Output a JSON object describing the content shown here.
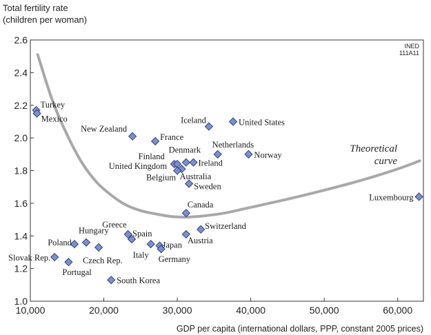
{
  "chart_data": {
    "type": "scatter",
    "ylabel_lines": [
      "Total fertility rate",
      "(children per woman)"
    ],
    "xlabel": "GDP per capita (international dollars, PPP, constant 2005 prices)",
    "source_code_lines": [
      "INED",
      "111A11"
    ],
    "xlim": [
      10000,
      63500
    ],
    "ylim": [
      1.0,
      2.6
    ],
    "x_ticks": [
      10000,
      20000,
      30000,
      40000,
      50000,
      60000
    ],
    "x_tick_labels": [
      "10,000",
      "20,000",
      "30,000",
      "40,000",
      "50,000",
      "60,000"
    ],
    "y_ticks": [
      1.0,
      1.2,
      1.4,
      1.6,
      1.8,
      2.0,
      2.2,
      2.4,
      2.6
    ],
    "y_tick_labels": [
      "1.0",
      "1.2",
      "1.4",
      "1.6",
      "1.8",
      "2.0",
      "2.2",
      "2.4",
      "2.6"
    ],
    "marker_color": "#7b8fd0",
    "curve_color": "#a8a8a8",
    "points": [
      {
        "name": "Turkey",
        "x": 10800,
        "y": 2.17
      },
      {
        "name": "Mexico",
        "x": 10900,
        "y": 2.15
      },
      {
        "name": "New Zealand",
        "x": 23900,
        "y": 2.01
      },
      {
        "name": "France",
        "x": 27000,
        "y": 1.98
      },
      {
        "name": "Iceland",
        "x": 34300,
        "y": 2.07
      },
      {
        "name": "United States",
        "x": 37600,
        "y": 2.1
      },
      {
        "name": "Netherlands",
        "x": 35500,
        "y": 1.9
      },
      {
        "name": "Norway",
        "x": 39700,
        "y": 1.9
      },
      {
        "name": "Denmark",
        "x": 31200,
        "y": 1.85
      },
      {
        "name": "Finland",
        "x": 29600,
        "y": 1.84
      },
      {
        "name": "United Kingdom",
        "x": 30000,
        "y": 1.84
      },
      {
        "name": "Australia",
        "x": 30600,
        "y": 1.81
      },
      {
        "name": "Belgium",
        "x": 30000,
        "y": 1.8
      },
      {
        "name": "Ireland",
        "x": 32200,
        "y": 1.85
      },
      {
        "name": "Sweden",
        "x": 31600,
        "y": 1.72
      },
      {
        "name": "Luxembourg",
        "x": 62900,
        "y": 1.64
      },
      {
        "name": "Canada",
        "x": 31200,
        "y": 1.54
      },
      {
        "name": "Switzerland",
        "x": 33200,
        "y": 1.44
      },
      {
        "name": "Austria",
        "x": 31200,
        "y": 1.41
      },
      {
        "name": "Greece",
        "x": 23300,
        "y": 1.41
      },
      {
        "name": "Spain",
        "x": 23800,
        "y": 1.38
      },
      {
        "name": "Italy",
        "x": 26400,
        "y": 1.35
      },
      {
        "name": "Japan",
        "x": 27600,
        "y": 1.34
      },
      {
        "name": "Germany",
        "x": 27800,
        "y": 1.32
      },
      {
        "name": "Hungary",
        "x": 17600,
        "y": 1.36
      },
      {
        "name": "Poland",
        "x": 16000,
        "y": 1.35
      },
      {
        "name": "Czech Rep.",
        "x": 19300,
        "y": 1.33
      },
      {
        "name": "Slovak Rep.",
        "x": 13300,
        "y": 1.27
      },
      {
        "name": "Portugal",
        "x": 15200,
        "y": 1.24
      },
      {
        "name": "South Korea",
        "x": 21000,
        "y": 1.13
      }
    ],
    "curve": {
      "label_lines": [
        "Theoretical",
        "curve"
      ],
      "x": [
        11000,
        13000,
        15000,
        17000,
        19000,
        21000,
        23000,
        25000,
        27000,
        29000,
        31000,
        33000,
        35000,
        37000,
        40000,
        45000,
        50000,
        55000,
        60000,
        63000
      ],
      "y": [
        2.51,
        2.23,
        2.02,
        1.85,
        1.73,
        1.65,
        1.59,
        1.555,
        1.535,
        1.52,
        1.515,
        1.52,
        1.53,
        1.545,
        1.575,
        1.625,
        1.68,
        1.74,
        1.81,
        1.86
      ]
    }
  }
}
